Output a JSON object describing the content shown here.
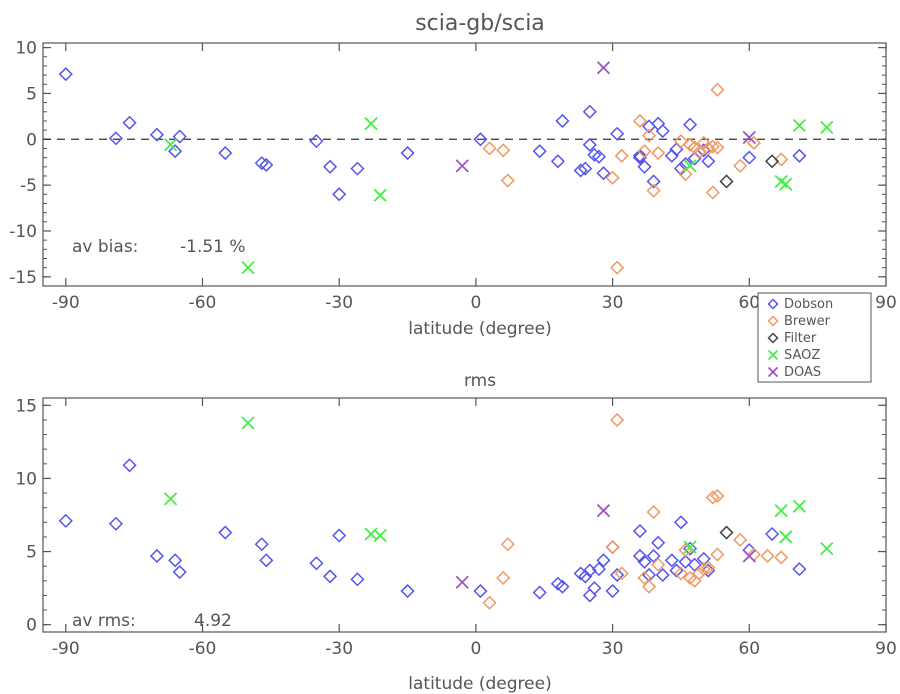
{
  "chart_data": [
    {
      "type": "scatter",
      "title": "scia-gb/scia",
      "xlabel": "latitude (degree)",
      "ylabel": "",
      "xlim": [
        -95,
        90
      ],
      "ylim": [
        -16,
        10.5
      ],
      "xticks": [
        "-90",
        "-60",
        "-30",
        "0",
        "30",
        "60",
        "90"
      ],
      "yticks": [
        "10",
        "5",
        "0",
        "-5",
        "-10",
        "-15"
      ],
      "reference_line": 0,
      "annotation_label": "av bias:",
      "annotation_value": "-1.51 %",
      "series": [
        {
          "name": "Dobson",
          "color": "#5555ee",
          "marker": "diamond",
          "points": [
            [
              -90,
              7.1
            ],
            [
              -79,
              0.1
            ],
            [
              -76,
              1.8
            ],
            [
              -70,
              0.5
            ],
            [
              -66,
              -1.3
            ],
            [
              -65,
              0.3
            ],
            [
              -55,
              -1.5
            ],
            [
              -47,
              -2.6
            ],
            [
              -46,
              -2.8
            ],
            [
              -35,
              -0.2
            ],
            [
              -32,
              -3
            ],
            [
              -30,
              -6
            ],
            [
              -26,
              -3.2
            ],
            [
              -15,
              -1.5
            ],
            [
              1,
              0
            ],
            [
              14,
              -1.3
            ],
            [
              18,
              -2.4
            ],
            [
              19,
              2
            ],
            [
              23,
              -3.4
            ],
            [
              24,
              -3.2
            ],
            [
              25,
              -0.6
            ],
            [
              25,
              3
            ],
            [
              26,
              -1.7
            ],
            [
              27,
              -1.9
            ],
            [
              28,
              -3.7
            ],
            [
              31,
              0.6
            ],
            [
              36,
              -2
            ],
            [
              36,
              -1.8
            ],
            [
              37,
              -3
            ],
            [
              38,
              1.4
            ],
            [
              39,
              -4.6
            ],
            [
              40,
              1.7
            ],
            [
              41,
              0.9
            ],
            [
              43,
              -1.8
            ],
            [
              44,
              -1.1
            ],
            [
              45,
              -3.2
            ],
            [
              46,
              -2.7
            ],
            [
              47,
              1.6
            ],
            [
              48,
              -2.1
            ],
            [
              50,
              -1.2
            ],
            [
              51,
              -2.4
            ],
            [
              60,
              -2
            ],
            [
              71,
              -1.8
            ]
          ]
        },
        {
          "name": "Brewer",
          "color": "#f09860",
          "marker": "diamond",
          "points": [
            [
              3,
              -1
            ],
            [
              6,
              -1.2
            ],
            [
              7,
              -4.5
            ],
            [
              30,
              -4.2
            ],
            [
              31,
              -14
            ],
            [
              32,
              -1.8
            ],
            [
              36,
              2
            ],
            [
              37,
              -1.3
            ],
            [
              38,
              0.4
            ],
            [
              39,
              -5.6
            ],
            [
              40,
              -1.5
            ],
            [
              45,
              -0.2
            ],
            [
              46,
              -3.8
            ],
            [
              47,
              -0.6
            ],
            [
              48,
              -0.9
            ],
            [
              49,
              -1.4
            ],
            [
              50,
              -0.4
            ],
            [
              51,
              -1
            ],
            [
              52,
              -5.8
            ],
            [
              52,
              -0.8
            ],
            [
              53,
              5.4
            ],
            [
              53,
              -0.9
            ],
            [
              58,
              -2.9
            ],
            [
              61,
              -0.4
            ],
            [
              67,
              -2.2
            ]
          ]
        },
        {
          "name": "Filter",
          "color": "#444444",
          "marker": "diamond",
          "points": [
            [
              55,
              -4.6
            ],
            [
              65,
              -2.4
            ]
          ]
        },
        {
          "name": "SAOZ",
          "color": "#44ee44",
          "marker": "x",
          "points": [
            [
              -67,
              -0.6
            ],
            [
              -50,
              -14
            ],
            [
              -23,
              1.7
            ],
            [
              -21,
              -6.1
            ],
            [
              47,
              -2.9
            ],
            [
              67,
              -4.6
            ],
            [
              68,
              -4.9
            ],
            [
              71,
              1.5
            ],
            [
              77,
              1.3
            ]
          ]
        },
        {
          "name": "DOAS",
          "color": "#a050c8",
          "marker": "x",
          "points": [
            [
              -3,
              -2.9
            ],
            [
              28,
              7.8
            ],
            [
              60,
              0.2
            ]
          ]
        }
      ]
    },
    {
      "type": "scatter",
      "title": "rms",
      "xlabel": "latitude (degree)",
      "ylabel": "",
      "xlim": [
        -95,
        90
      ],
      "ylim": [
        -0.5,
        15.5
      ],
      "xticks": [
        "-90",
        "-60",
        "-30",
        "0",
        "30",
        "60",
        "90"
      ],
      "yticks": [
        "15",
        "10",
        "5",
        "0"
      ],
      "annotation_label": "av rms:",
      "annotation_value": "4.92",
      "series": [
        {
          "name": "Dobson",
          "color": "#5555ee",
          "marker": "diamond",
          "points": [
            [
              -90,
              7.1
            ],
            [
              -79,
              6.9
            ],
            [
              -76,
              10.9
            ],
            [
              -70,
              4.7
            ],
            [
              -66,
              4.4
            ],
            [
              -65,
              3.6
            ],
            [
              -55,
              6.3
            ],
            [
              -47,
              5.5
            ],
            [
              -46,
              4.4
            ],
            [
              -35,
              4.2
            ],
            [
              -32,
              3.3
            ],
            [
              -30,
              6.1
            ],
            [
              -26,
              3.1
            ],
            [
              -15,
              2.3
            ],
            [
              1,
              2.3
            ],
            [
              14,
              2.2
            ],
            [
              18,
              2.8
            ],
            [
              19,
              2.6
            ],
            [
              23,
              3.5
            ],
            [
              24,
              3.3
            ],
            [
              25,
              2
            ],
            [
              25,
              3.7
            ],
            [
              26,
              2.5
            ],
            [
              27,
              3.8
            ],
            [
              28,
              4.4
            ],
            [
              30,
              5.3
            ],
            [
              30,
              2.3
            ],
            [
              31,
              3.4
            ],
            [
              36,
              6.4
            ],
            [
              36,
              4.7
            ],
            [
              37,
              4.3
            ],
            [
              38,
              3.4
            ],
            [
              39,
              4.7
            ],
            [
              40,
              5.6
            ],
            [
              41,
              3.4
            ],
            [
              43,
              4.4
            ],
            [
              44,
              3.7
            ],
            [
              45,
              7
            ],
            [
              46,
              4.3
            ],
            [
              47,
              5.2
            ],
            [
              48,
              4.1
            ],
            [
              50,
              4.5
            ],
            [
              51,
              3.7
            ],
            [
              60,
              5.1
            ],
            [
              65,
              6.2
            ],
            [
              71,
              3.8
            ]
          ]
        },
        {
          "name": "Brewer",
          "color": "#f09860",
          "marker": "diamond",
          "points": [
            [
              3,
              1.5
            ],
            [
              6,
              3.2
            ],
            [
              7,
              5.5
            ],
            [
              30,
              5.3
            ],
            [
              31,
              14
            ],
            [
              32,
              3.5
            ],
            [
              37,
              3.2
            ],
            [
              38,
              2.6
            ],
            [
              39,
              7.7
            ],
            [
              40,
              4.1
            ],
            [
              45,
              3.5
            ],
            [
              46,
              5.1
            ],
            [
              47,
              3.2
            ],
            [
              48,
              3
            ],
            [
              49,
              3.5
            ],
            [
              50,
              3.8
            ],
            [
              51,
              3.9
            ],
            [
              52,
              8.7
            ],
            [
              53,
              8.8
            ],
            [
              53,
              4.8
            ],
            [
              58,
              5.8
            ],
            [
              61,
              4.8
            ],
            [
              64,
              4.7
            ],
            [
              67,
              4.6
            ]
          ]
        },
        {
          "name": "Filter",
          "color": "#444444",
          "marker": "diamond",
          "points": [
            [
              55,
              6.3
            ]
          ]
        },
        {
          "name": "SAOZ",
          "color": "#44ee44",
          "marker": "x",
          "points": [
            [
              -67,
              8.6
            ],
            [
              -50,
              13.8
            ],
            [
              -23,
              6.2
            ],
            [
              -21,
              6.1
            ],
            [
              47,
              5.3
            ],
            [
              67,
              7.8
            ],
            [
              68,
              6
            ],
            [
              71,
              8.1
            ],
            [
              77,
              5.2
            ]
          ]
        },
        {
          "name": "DOAS",
          "color": "#a050c8",
          "marker": "x",
          "points": [
            [
              -3,
              2.9
            ],
            [
              28,
              7.8
            ],
            [
              60,
              4.7
            ]
          ]
        }
      ]
    }
  ],
  "legend": {
    "placement": "top-right of lower panel",
    "items": [
      {
        "label": "Dobson",
        "color": "#5555ee",
        "marker": "diamond"
      },
      {
        "label": "Brewer",
        "color": "#f09860",
        "marker": "diamond"
      },
      {
        "label": "Filter",
        "color": "#444444",
        "marker": "diamond"
      },
      {
        "label": "SAOZ",
        "color": "#44ee44",
        "marker": "x"
      },
      {
        "label": "DOAS",
        "color": "#a050c8",
        "marker": "x"
      }
    ]
  }
}
